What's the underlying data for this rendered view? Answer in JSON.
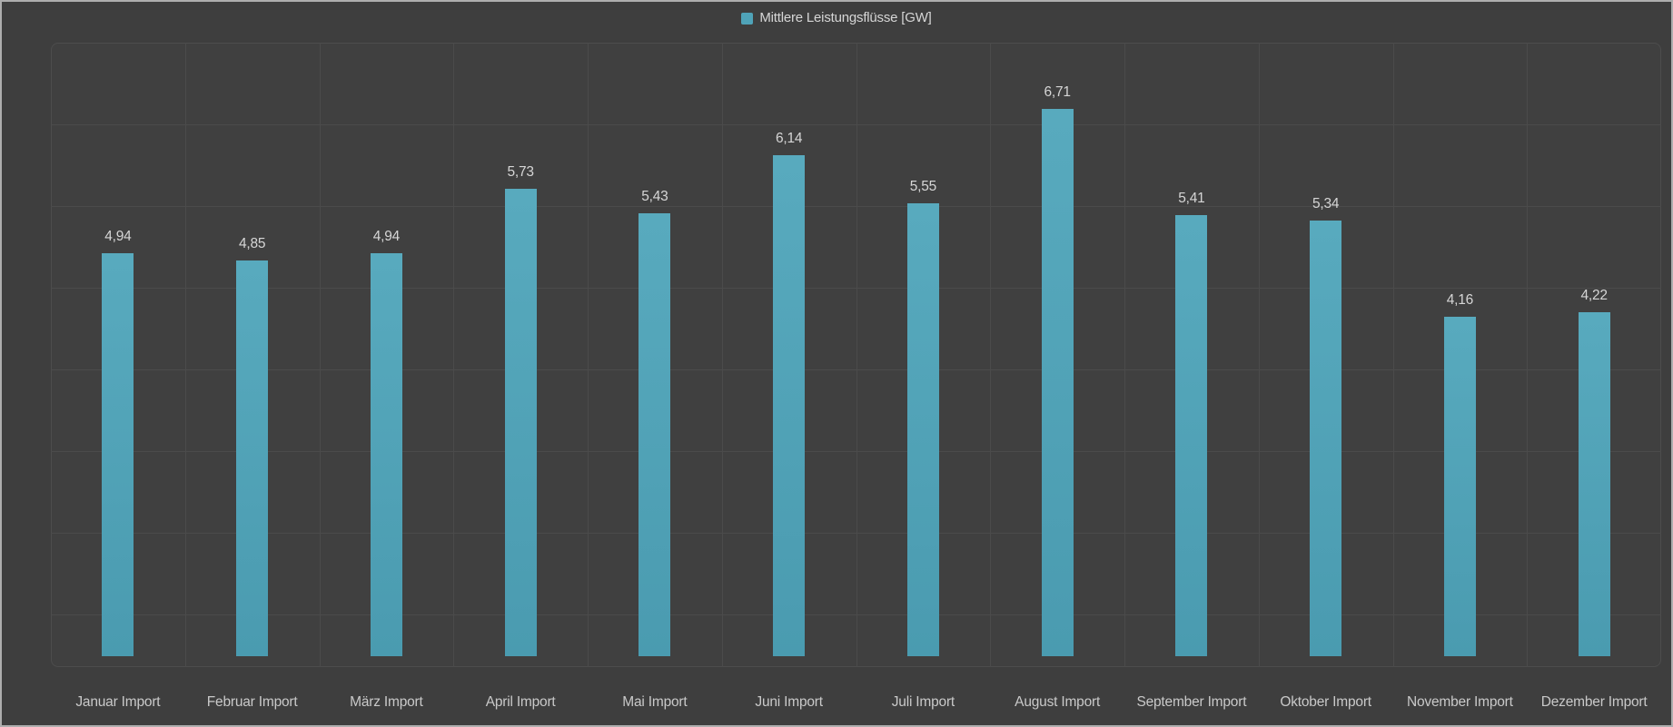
{
  "legend": {
    "label": "Mittlere Leistungsflüsse [GW]"
  },
  "colors": {
    "background": "#3e3e3e",
    "outer_border": "#aeaeae",
    "gridline": "#4b4b4b",
    "bar": "#4fa0b5",
    "bar_gradient_top": "#58aabe",
    "bar_gradient_bottom": "#4a9bb0",
    "label_text": "#d6d6d6",
    "axis_text": "#c9c9c9"
  },
  "chart_data": {
    "type": "bar",
    "title": "Mittlere Leistungsflüsse [GW]",
    "unit": "GW",
    "categories": [
      "Januar Import",
      "Februar Import",
      "März Import",
      "April Import",
      "Mai Import",
      "Juni Import",
      "Juli Import",
      "August Import",
      "September Import",
      "Oktober Import",
      "November Import",
      "Dezember Import"
    ],
    "series": [
      {
        "name": "Mittlere Leistungsflüsse [GW]",
        "values": [
          4.94,
          4.85,
          4.94,
          5.73,
          5.43,
          6.14,
          5.55,
          6.71,
          5.41,
          5.34,
          4.16,
          4.22
        ],
        "value_labels": [
          "4,94",
          "4,85",
          "4,94",
          "5,73",
          "5,43",
          "6,14",
          "5,55",
          "6,71",
          "5,41",
          "5,34",
          "4,16",
          "4,22"
        ]
      }
    ],
    "xlabel": "",
    "ylabel": "",
    "ylim": [
      0,
      7.6
    ],
    "y_axis_tick_labels_visible": false,
    "grid": true,
    "legend_position": "top-center",
    "data_labels": true,
    "decimal_separator": ","
  }
}
